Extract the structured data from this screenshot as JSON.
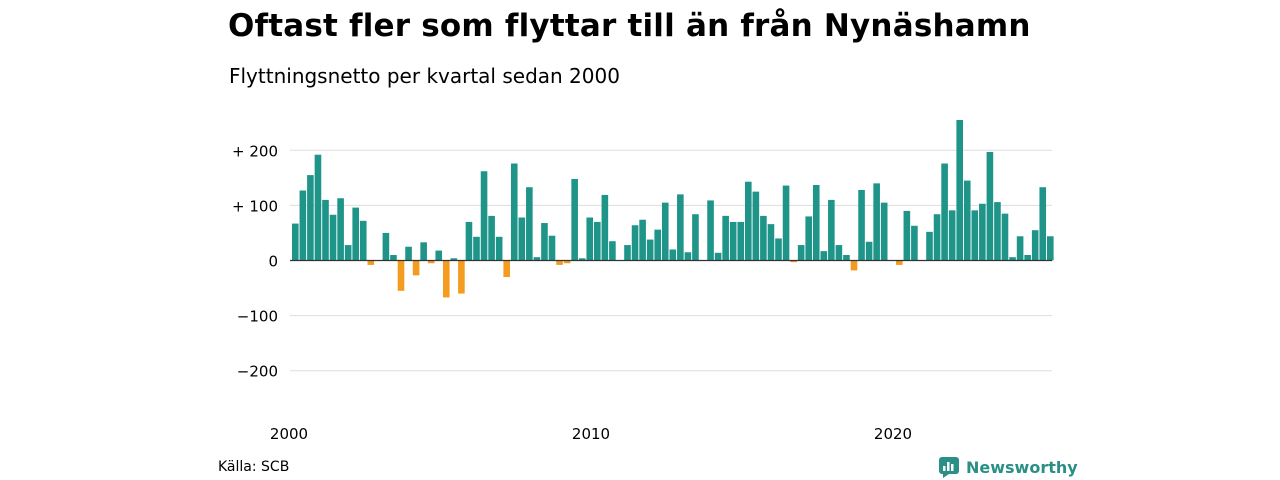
{
  "title": "Oftast fler som flyttar till än från Nynäshamn",
  "subtitle": "Flyttningsnetto per kvartal sedan 2000",
  "source": "Källa: SCB",
  "brand": "Newsworthy",
  "colors": {
    "positive": "#1f9488",
    "negative": "#f39c1f",
    "grid": "#dddddd",
    "zero": "#333333",
    "brand": "#2a8f86"
  },
  "chart_data": {
    "type": "bar",
    "title": "Oftast fler som flyttar till än från Nynäshamn",
    "subtitle": "Flyttningsnetto per kvartal sedan 2000",
    "ylim": [
      -230,
      260
    ],
    "yticks": [
      {
        "value": 200,
        "label": "+ 200"
      },
      {
        "value": 100,
        "label": "+ 100"
      },
      {
        "value": 0,
        "label": "0"
      },
      {
        "value": -100,
        "label": "−100"
      },
      {
        "value": -200,
        "label": "−200"
      }
    ],
    "xticks": [
      {
        "value": 2000,
        "label": "2000"
      },
      {
        "value": 2010,
        "label": "2010"
      },
      {
        "value": 2020,
        "label": "2020"
      }
    ],
    "grid": true,
    "start_year": 2000,
    "values": [
      67,
      127,
      155,
      192,
      110,
      83,
      113,
      28,
      96,
      72,
      -8,
      0,
      50,
      10,
      -55,
      25,
      -27,
      33,
      -5,
      18,
      -67,
      4,
      -60,
      70,
      43,
      162,
      81,
      43,
      -30,
      176,
      78,
      133,
      6,
      68,
      45,
      -8,
      -5,
      148,
      4,
      78,
      70,
      119,
      35,
      0,
      28,
      64,
      74,
      38,
      56,
      105,
      20,
      120,
      15,
      84,
      0,
      109,
      14,
      81,
      70,
      70,
      143,
      125,
      81,
      66,
      40,
      136,
      -3,
      28,
      80,
      137,
      17,
      110,
      28,
      10,
      -18,
      128,
      34,
      140,
      105,
      0,
      -8,
      90,
      63,
      0,
      52,
      84,
      176,
      91,
      255,
      145,
      91,
      103,
      197,
      106,
      85,
      6,
      44,
      10,
      55,
      133,
      44
    ]
  }
}
